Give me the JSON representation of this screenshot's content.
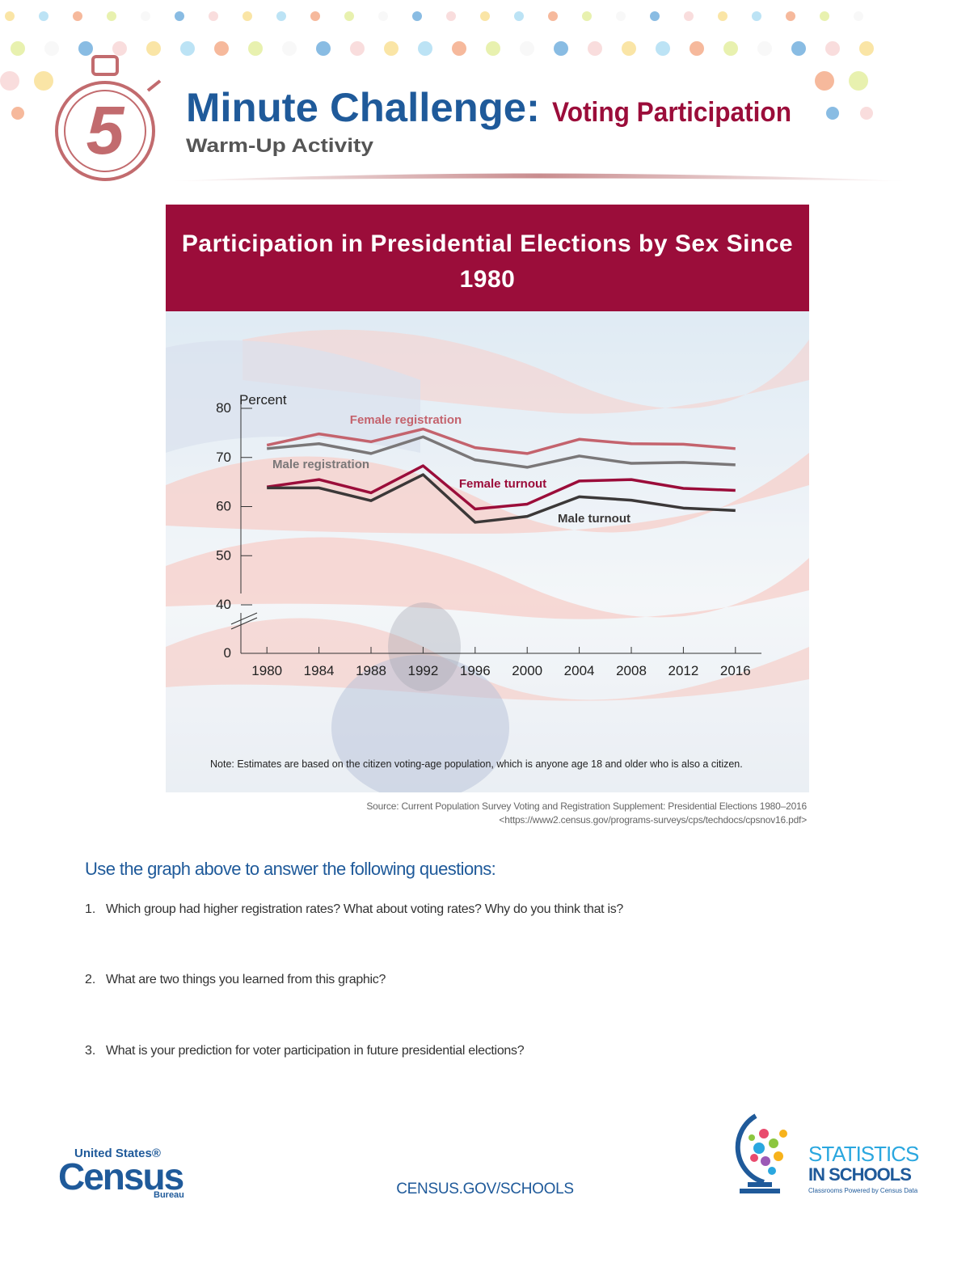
{
  "header": {
    "number": "5",
    "title": "Minute Challenge:",
    "topic": "Voting Participation",
    "subtitle": "Warm-Up Activity"
  },
  "chart_data": {
    "type": "line",
    "title": "Participation in Presidential Elections by Sex Since 1980",
    "y_label": "Percent",
    "x": [
      1980,
      1984,
      1988,
      1992,
      1996,
      2000,
      2004,
      2008,
      2012,
      2016
    ],
    "xlim": [
      1978,
      2018
    ],
    "xticks": [
      1980,
      1984,
      1988,
      1992,
      1996,
      2000,
      2004,
      2008,
      2012,
      2016
    ],
    "ylim": [
      0,
      80
    ],
    "axis_break": [
      0,
      40
    ],
    "yticks": [
      0,
      40,
      50,
      60,
      70,
      80
    ],
    "series": [
      {
        "name": "Female registration",
        "color": "#c4636d",
        "values": [
          72.5,
          74.8,
          73.2,
          75.8,
          72.0,
          70.8,
          73.7,
          72.8,
          72.7,
          71.8
        ]
      },
      {
        "name": "Male registration",
        "color": "#7a7778",
        "values": [
          71.8,
          72.8,
          70.8,
          74.2,
          69.5,
          68.0,
          70.3,
          68.8,
          69.0,
          68.5
        ]
      },
      {
        "name": "Female turnout",
        "color": "#9b0d3a",
        "values": [
          64.0,
          65.5,
          62.8,
          68.3,
          59.5,
          60.5,
          65.2,
          65.5,
          63.7,
          63.3
        ]
      },
      {
        "name": "Male turnout",
        "color": "#3b3838",
        "values": [
          63.8,
          63.8,
          61.2,
          66.5,
          56.8,
          58.0,
          62.0,
          61.3,
          59.7,
          59.2
        ]
      }
    ]
  },
  "note": "Note: Estimates are based on the citizen voting-age population, which is anyone age 18 and older who is also a citizen.",
  "source": [
    "Source: Current Population Survey Voting and Registration Supplement: Presidential Elections 1980–2016",
    "<https://www2.census.gov/programs-surveys/cps/techdocs/cpsnov16.pdf>"
  ],
  "questions": {
    "heading": "Use the graph above to answer the following questions:",
    "items": [
      {
        "number": "1.",
        "text": "Which group had higher registration rates?  What about voting rates?  Why do you think that is?"
      },
      {
        "number": "2.",
        "text": "What are two things you learned from this graphic?"
      },
      {
        "number": "3.",
        "text": "What is your prediction for voter participation in future presidential elections?"
      }
    ]
  },
  "footer": {
    "census_top": "United States®",
    "census_main": "Census",
    "census_bottom": "Bureau",
    "website": "CENSUS.GOV/SCHOOLS",
    "sis_line1": "STATISTICS",
    "sis_line2": "IN SCHOOLS",
    "sis_tagline": "Classrooms Powered by Census Data"
  }
}
